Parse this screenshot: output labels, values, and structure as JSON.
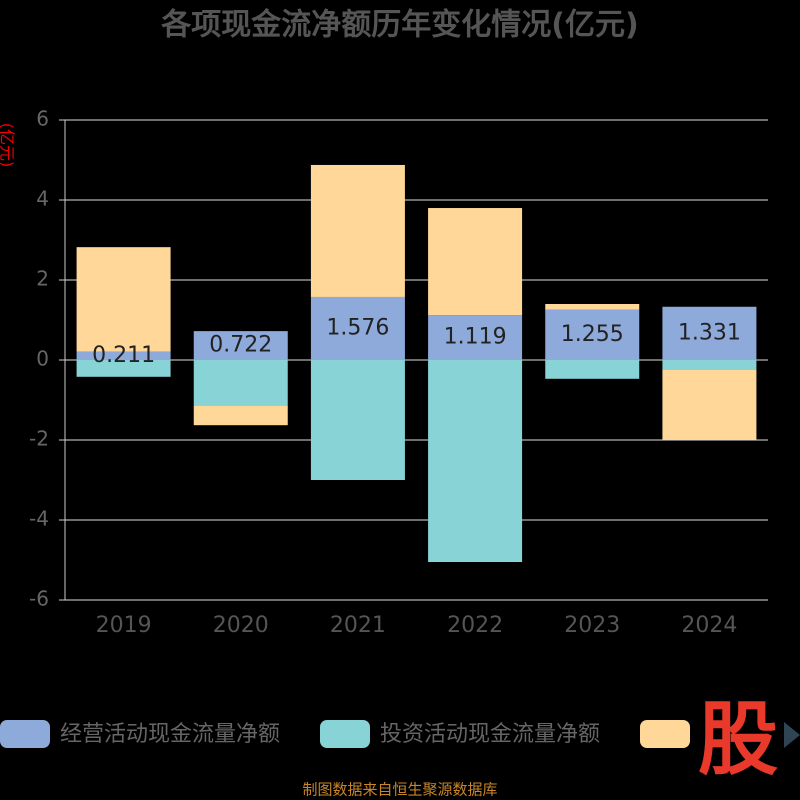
{
  "chart_data": {
    "type": "bar",
    "stacked": true,
    "title": "各项现金流净额历年变化情况(亿元)",
    "y_label": "(亿元)",
    "categories": [
      "2019",
      "2020",
      "2021",
      "2022",
      "2023",
      "2024"
    ],
    "series": [
      {
        "name": "经营活动现金流量净额",
        "color": "#8eaadb",
        "values": [
          0.211,
          0.722,
          1.576,
          1.119,
          1.255,
          1.331
        ],
        "show_labels": true
      },
      {
        "name": "投资活动现金流量净额",
        "color": "#87d3d6",
        "values": [
          -0.42,
          -1.13,
          -3.0,
          -5.05,
          -0.47,
          -0.25
        ]
      },
      {
        "name": null,
        "color": "#ffd899",
        "values": [
          2.61,
          -0.5,
          3.3,
          2.68,
          0.145,
          -1.75
        ]
      }
    ],
    "ylim": [
      -6,
      6
    ],
    "yticks": [
      -6,
      -4,
      -2,
      0,
      2,
      4,
      6
    ],
    "grid": true,
    "source": "制图数据来自恒生聚源数据库",
    "logo": "股"
  }
}
